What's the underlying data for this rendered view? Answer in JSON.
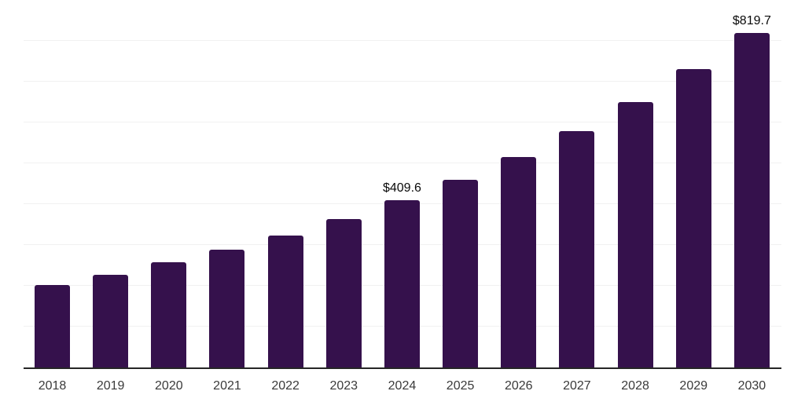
{
  "chart_data": {
    "type": "bar",
    "title": "",
    "xlabel": "",
    "ylabel": "",
    "categories": [
      "2018",
      "2019",
      "2020",
      "2021",
      "2022",
      "2023",
      "2024",
      "2025",
      "2026",
      "2027",
      "2028",
      "2029",
      "2030"
    ],
    "values": [
      201.5,
      226.0,
      257.5,
      288.0,
      323.5,
      364.0,
      409.6,
      459.8,
      516.0,
      579.0,
      650.5,
      731.0,
      819.7
    ],
    "data_labels": {
      "2024": "$409.6",
      "2030": "$819.7"
    },
    "ylim": [
      0,
      900
    ],
    "gridline_interval": 100,
    "grid": true,
    "legend": false,
    "colors": {
      "bar": "#35114C",
      "axis_line": "#262626",
      "gridline": "#f1f1f1",
      "tick_label": "#3a3a3a",
      "value_label": "#0a0a0a"
    }
  }
}
